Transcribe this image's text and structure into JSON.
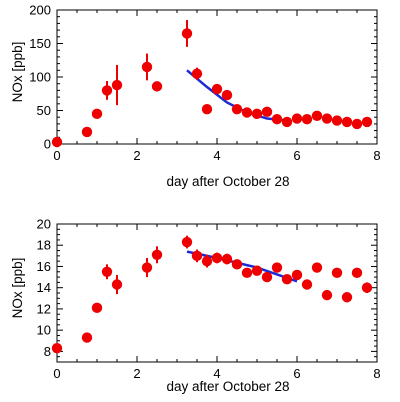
{
  "chart_data": [
    {
      "type": "scatter",
      "title": "",
      "xlabel": "day after October 28",
      "ylabel": "NOx [ppb]",
      "xlim": [
        0,
        8
      ],
      "ylim": [
        0,
        200
      ],
      "x_ticks": [
        "0",
        "2",
        "4",
        "6",
        "8"
      ],
      "y_ticks": [
        "0",
        "50",
        "100",
        "150",
        "200"
      ],
      "points": [
        {
          "x": 0.0,
          "y": 3,
          "err": 0
        },
        {
          "x": 0.75,
          "y": 18,
          "err": 0
        },
        {
          "x": 1.0,
          "y": 45,
          "err": 0
        },
        {
          "x": 1.25,
          "y": 80,
          "err": 14
        },
        {
          "x": 1.5,
          "y": 88,
          "err": 30
        },
        {
          "x": 2.25,
          "y": 115,
          "err": 20
        },
        {
          "x": 2.5,
          "y": 86,
          "err": 7
        },
        {
          "x": 3.25,
          "y": 165,
          "err": 20
        },
        {
          "x": 3.5,
          "y": 105,
          "err": 9
        },
        {
          "x": 3.75,
          "y": 52,
          "err": 0
        },
        {
          "x": 4.0,
          "y": 82,
          "err": 5
        },
        {
          "x": 4.25,
          "y": 73,
          "err": 7
        },
        {
          "x": 4.5,
          "y": 52,
          "err": 7
        },
        {
          "x": 4.75,
          "y": 47,
          "err": 5
        },
        {
          "x": 5.0,
          "y": 45,
          "err": 5
        },
        {
          "x": 5.25,
          "y": 48,
          "err": 0
        },
        {
          "x": 5.5,
          "y": 37,
          "err": 0
        },
        {
          "x": 5.75,
          "y": 33,
          "err": 0
        },
        {
          "x": 6.0,
          "y": 38,
          "err": 0
        },
        {
          "x": 6.25,
          "y": 37,
          "err": 0
        },
        {
          "x": 6.5,
          "y": 42,
          "err": 0
        },
        {
          "x": 6.75,
          "y": 38,
          "err": 0
        },
        {
          "x": 7.0,
          "y": 35,
          "err": 0
        },
        {
          "x": 7.25,
          "y": 33,
          "err": 0
        },
        {
          "x": 7.5,
          "y": 30,
          "err": 0
        },
        {
          "x": 7.75,
          "y": 33,
          "err": 0
        }
      ],
      "fit": {
        "x": [
          3.25,
          3.75,
          4.25,
          4.75,
          5.25,
          5.75
        ],
        "y": [
          110,
          85,
          62,
          47,
          38,
          35
        ]
      }
    },
    {
      "type": "scatter",
      "title": "",
      "xlabel": "day after October 28",
      "ylabel": "NOx [ppb]",
      "xlim": [
        0,
        8
      ],
      "ylim": [
        7,
        20
      ],
      "x_ticks": [
        "0",
        "2",
        "4",
        "6",
        "8"
      ],
      "y_ticks": [
        "8",
        "10",
        "12",
        "14",
        "16",
        "18",
        "20"
      ],
      "points": [
        {
          "x": 0.0,
          "y": 8.3,
          "err": 0
        },
        {
          "x": 0.75,
          "y": 9.3,
          "err": 0
        },
        {
          "x": 1.0,
          "y": 12.1,
          "err": 0
        },
        {
          "x": 1.25,
          "y": 15.5,
          "err": 0.7
        },
        {
          "x": 1.5,
          "y": 14.3,
          "err": 0.9
        },
        {
          "x": 2.25,
          "y": 15.9,
          "err": 0.9
        },
        {
          "x": 2.5,
          "y": 17.1,
          "err": 0.8
        },
        {
          "x": 3.25,
          "y": 18.3,
          "err": 0.6
        },
        {
          "x": 3.5,
          "y": 17.0,
          "err": 0.6
        },
        {
          "x": 3.75,
          "y": 16.5,
          "err": 0.6
        },
        {
          "x": 4.0,
          "y": 16.8,
          "err": 0.5
        },
        {
          "x": 4.25,
          "y": 16.7,
          "err": 0.5
        },
        {
          "x": 4.5,
          "y": 16.2,
          "err": 0.4
        },
        {
          "x": 4.75,
          "y": 15.4,
          "err": 0.4
        },
        {
          "x": 5.0,
          "y": 15.6,
          "err": 0.4
        },
        {
          "x": 5.25,
          "y": 15.0,
          "err": 0.4
        },
        {
          "x": 5.5,
          "y": 15.9,
          "err": 0
        },
        {
          "x": 5.75,
          "y": 14.8,
          "err": 0
        },
        {
          "x": 6.0,
          "y": 15.2,
          "err": 0
        },
        {
          "x": 6.25,
          "y": 14.3,
          "err": 0
        },
        {
          "x": 6.5,
          "y": 15.9,
          "err": 0
        },
        {
          "x": 6.75,
          "y": 13.3,
          "err": 0
        },
        {
          "x": 7.0,
          "y": 15.4,
          "err": 0
        },
        {
          "x": 7.25,
          "y": 13.1,
          "err": 0
        },
        {
          "x": 7.5,
          "y": 15.4,
          "err": 0
        },
        {
          "x": 7.75,
          "y": 14.0,
          "err": 0.5
        }
      ],
      "fit": {
        "x": [
          3.25,
          4.0,
          5.0,
          6.0
        ],
        "y": [
          17.4,
          16.8,
          15.9,
          14.6
        ]
      }
    }
  ],
  "colors": {
    "points": "#ee0000",
    "fit": "#1f2ad6",
    "axes": "#000000"
  }
}
